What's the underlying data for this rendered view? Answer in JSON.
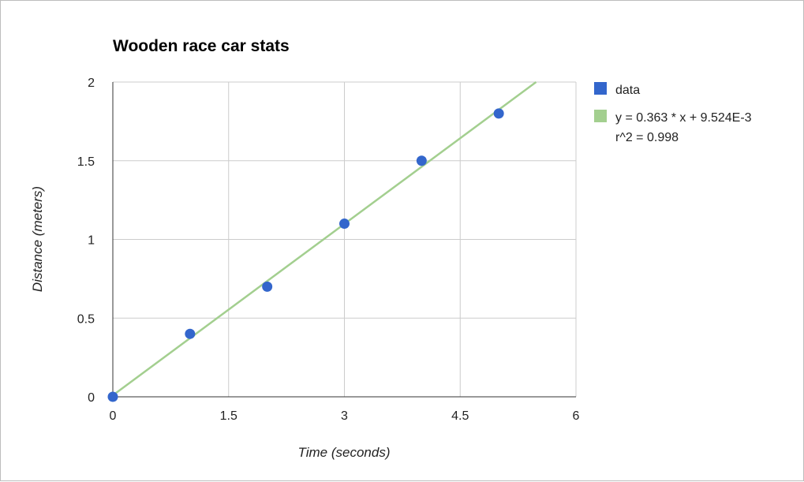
{
  "chart_data": {
    "type": "scatter",
    "title": "Wooden race car stats",
    "xlabel": "Time (seconds)",
    "ylabel": "Distance (meters)",
    "xlim": [
      0,
      6
    ],
    "ylim": [
      0,
      2
    ],
    "x_ticks": [
      "0",
      "1.5",
      "3",
      "4.5",
      "6"
    ],
    "y_ticks": [
      "0",
      "0.5",
      "1",
      "1.5",
      "2"
    ],
    "grid": true,
    "legend_position": "right",
    "series": [
      {
        "name": "data",
        "color": "#3366cc",
        "points": [
          {
            "x": 0,
            "y": 0
          },
          {
            "x": 1,
            "y": 0.4
          },
          {
            "x": 2,
            "y": 0.7
          },
          {
            "x": 3,
            "y": 1.1
          },
          {
            "x": 4,
            "y": 1.5
          },
          {
            "x": 5,
            "y": 1.8
          }
        ]
      }
    ],
    "trendline": {
      "type": "linear",
      "color": "#a3cf8f",
      "slope": 0.363,
      "intercept": 0.009524,
      "label_line1": "y = 0.363 * x + 9.524E-3",
      "label_line2": "r^2 = 0.998"
    }
  }
}
